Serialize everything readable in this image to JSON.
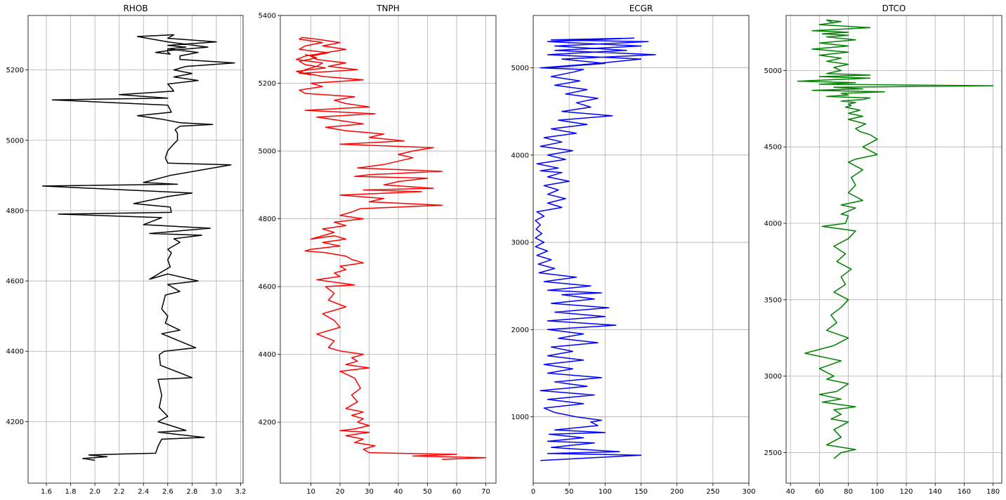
{
  "chart_data": [
    {
      "type": "line",
      "title": "RHOB",
      "color": "#000000",
      "xlim": [
        1.45,
        3.22
      ],
      "ylim": [
        4025,
        5355
      ],
      "xticks": [
        1.6,
        1.8,
        2.0,
        2.2,
        2.4,
        2.6,
        2.8,
        3.0,
        3.2
      ],
      "xtick_labels": [
        "1.6",
        "1.8",
        "2.0",
        "2.2",
        "2.4",
        "2.6",
        "2.8",
        "3.0",
        "3.2"
      ],
      "yticks": [
        4200,
        4400,
        4600,
        4800,
        5000,
        5200
      ],
      "ytick_labels": [
        "4200",
        "4400",
        "4600",
        "4800",
        "5000",
        "5200"
      ],
      "grid": true,
      "series": [
        {
          "x": [
            2.0,
            1.9,
            2.1,
            1.95,
            2.25,
            2.5,
            2.52,
            2.55,
            2.9,
            2.52,
            2.75,
            2.52,
            2.6,
            2.53,
            2.55,
            2.52,
            2.8,
            2.54,
            2.53,
            2.57,
            2.83,
            2.55,
            2.7,
            2.58,
            2.6,
            2.55,
            2.58,
            2.7,
            2.6,
            2.85,
            2.6,
            2.45,
            2.62,
            2.6,
            2.63,
            2.6,
            2.65,
            2.7,
            2.65,
            2.88,
            2.45,
            2.95,
            2.4,
            2.55,
            1.7,
            2.63,
            2.62,
            2.32,
            2.6,
            2.8,
            1.57,
            2.68,
            2.4,
            2.62,
            3.12,
            2.6,
            2.58,
            2.6,
            2.65,
            2.68,
            2.68,
            2.66,
            2.7,
            2.97,
            2.7,
            2.55,
            2.35,
            2.63,
            2.6,
            1.65,
            2.6,
            2.2,
            2.65,
            2.6,
            2.85,
            2.65,
            2.8,
            2.65,
            2.75,
            3.15,
            2.7,
            2.7,
            2.85,
            2.6,
            2.75,
            2.6,
            3.0,
            2.6,
            2.65,
            2.35,
            2.6,
            2.93,
            2.6,
            2.5,
            2.62,
            2.6,
            2.6
          ],
          "y": [
            4090,
            4095,
            4100,
            4105,
            4108,
            4110,
            4130,
            4150,
            4155,
            4170,
            4175,
            4200,
            4215,
            4240,
            4275,
            4320,
            4325,
            4360,
            4390,
            4400,
            4410,
            4450,
            4460,
            4480,
            4500,
            4520,
            4560,
            4570,
            4590,
            4600,
            4620,
            4605,
            4640,
            4660,
            4680,
            4690,
            4700,
            4710,
            4720,
            4730,
            4735,
            4750,
            4760,
            4780,
            4790,
            4795,
            4810,
            4820,
            4840,
            4850,
            4870,
            4875,
            4880,
            4900,
            4930,
            4935,
            4950,
            4970,
            4990,
            5000,
            5020,
            5030,
            5040,
            5045,
            5050,
            5060,
            5070,
            5080,
            5100,
            5115,
            5120,
            5130,
            5140,
            5160,
            5170,
            5180,
            5190,
            5200,
            5210,
            5220,
            5230,
            5240,
            5250,
            5260,
            5265,
            5270,
            5280,
            5290,
            5300,
            5295,
            5280,
            5265,
            5255,
            5250,
            5245,
            5250,
            5260
          ]
        }
      ]
    },
    {
      "type": "line",
      "title": "TNPH",
      "color": "#ff0000",
      "xlim": [
        -0.5,
        73.5
      ],
      "ylim": [
        4020,
        5400
      ],
      "xticks": [
        10,
        20,
        30,
        40,
        50,
        60,
        70
      ],
      "xtick_labels": [
        "10",
        "20",
        "30",
        "40",
        "50",
        "60",
        "70"
      ],
      "yticks": [
        4200,
        4400,
        4600,
        4800,
        5000,
        5200,
        5400
      ],
      "ytick_labels": [
        "4200",
        "4400",
        "4600",
        "4800",
        "5000",
        "5200",
        "5400"
      ],
      "grid": true,
      "series": [
        {
          "x": [
            55,
            70,
            45,
            60,
            30,
            28,
            32,
            25,
            28,
            22,
            30,
            20,
            25,
            30,
            26,
            28,
            24,
            28,
            22,
            26,
            24,
            27,
            25,
            20,
            30,
            22,
            26,
            24,
            28,
            20,
            16,
            18,
            12,
            20,
            18,
            14,
            22,
            16,
            18,
            15,
            25,
            12,
            20,
            18,
            22,
            20,
            28,
            24,
            22,
            15,
            8,
            10,
            20,
            14,
            22,
            18,
            10,
            18,
            14,
            22,
            18,
            28,
            20,
            24,
            27,
            55,
            30,
            35,
            20,
            48,
            28,
            52,
            35,
            40,
            50,
            25,
            30,
            55,
            26,
            35,
            45,
            40,
            45,
            52,
            20,
            42,
            30,
            35,
            22,
            15,
            28,
            20,
            12,
            32,
            8,
            30,
            22,
            18,
            25,
            8,
            6,
            14,
            10,
            28,
            14,
            8,
            26,
            16,
            22,
            12,
            10,
            16,
            6,
            8,
            14,
            6,
            7,
            12,
            20,
            14,
            22,
            15,
            8,
            5,
            14,
            12,
            8,
            6,
            10,
            5,
            15,
            8,
            6,
            12,
            8
          ],
          "y": [
            4090,
            4095,
            4100,
            4105,
            4110,
            4120,
            4130,
            4140,
            4150,
            4160,
            4170,
            4175,
            4180,
            4190,
            4200,
            4210,
            4220,
            4230,
            4240,
            4260,
            4280,
            4300,
            4330,
            4350,
            4360,
            4370,
            4380,
            4390,
            4400,
            4410,
            4420,
            4440,
            4460,
            4480,
            4500,
            4520,
            4540,
            4560,
            4580,
            4600,
            4605,
            4620,
            4630,
            4640,
            4650,
            4660,
            4670,
            4680,
            4690,
            4700,
            4705,
            4710,
            4720,
            4730,
            4740,
            4750,
            4740,
            4760,
            4770,
            4780,
            4790,
            4800,
            4810,
            4820,
            4830,
            4840,
            4850,
            4860,
            4870,
            4880,
            4885,
            4890,
            4900,
            4910,
            4920,
            4925,
            4930,
            4940,
            4950,
            4960,
            4980,
            4990,
            5000,
            5010,
            5020,
            5030,
            5040,
            5050,
            5060,
            5070,
            5080,
            5090,
            5100,
            5110,
            5120,
            5130,
            5140,
            5150,
            5160,
            5170,
            5180,
            5190,
            5200,
            5210,
            5220,
            5230,
            5240,
            5250,
            5260,
            5270,
            5280,
            5290,
            5300,
            5310,
            5320,
            5330,
            5335,
            5330,
            5320,
            5310,
            5300,
            5290,
            5280,
            5270,
            5260,
            5250,
            5240,
            5230,
            5225,
            5235,
            5245,
            5255,
            5265,
            5275,
            5285
          ]
        }
      ]
    },
    {
      "type": "line",
      "title": "ECGR",
      "color": "#0000ff",
      "xlim": [
        0,
        300
      ],
      "ylim": [
        240,
        5600
      ],
      "xticks": [
        0,
        50,
        100,
        150,
        200,
        250,
        300
      ],
      "xtick_labels": [
        "0",
        "50",
        "100",
        "150",
        "200",
        "250",
        "300"
      ],
      "yticks": [
        1000,
        2000,
        3000,
        4000,
        5000
      ],
      "ytick_labels": [
        "1000",
        "2000",
        "3000",
        "4000",
        "5000"
      ],
      "grid": true,
      "series": [
        {
          "x": [
            10,
            150,
            20,
            120,
            25,
            85,
            20,
            70,
            22,
            100,
            30,
            90,
            80,
            95,
            60,
            30,
            15,
            70,
            20,
            85,
            10,
            75,
            30,
            95,
            20,
            55,
            15,
            70,
            20,
            55,
            25,
            90,
            35,
            70,
            20,
            115,
            20,
            100,
            30,
            105,
            25,
            85,
            40,
            95,
            20,
            80,
            15,
            60,
            8,
            30,
            7,
            25,
            5,
            20,
            3,
            15,
            3,
            12,
            4,
            10,
            3,
            15,
            5,
            40,
            20,
            45,
            20,
            35,
            15,
            50,
            20,
            40,
            10,
            35,
            5,
            45,
            20,
            55,
            10,
            40,
            15,
            60,
            25,
            75,
            35,
            110,
            40,
            80,
            60,
            90,
            45,
            75,
            30,
            65,
            25,
            55,
            70,
            10,
            90,
            150,
            20,
            130,
            30,
            160,
            25,
            140,
            20,
            150,
            30,
            170,
            40,
            100,
            20
          ],
          "y": [
            500,
            560,
            580,
            600,
            650,
            700,
            720,
            760,
            800,
            820,
            850,
            900,
            940,
            960,
            1000,
            1050,
            1100,
            1150,
            1200,
            1250,
            1300,
            1350,
            1400,
            1450,
            1500,
            1550,
            1600,
            1650,
            1700,
            1750,
            1800,
            1850,
            1900,
            1950,
            2000,
            2050,
            2100,
            2150,
            2200,
            2250,
            2300,
            2350,
            2400,
            2420,
            2450,
            2500,
            2550,
            2600,
            2650,
            2700,
            2750,
            2800,
            2850,
            2900,
            2950,
            3000,
            3050,
            3100,
            3150,
            3200,
            3250,
            3300,
            3350,
            3400,
            3450,
            3500,
            3550,
            3600,
            3650,
            3700,
            3750,
            3800,
            3820,
            3850,
            3900,
            3950,
            4000,
            4050,
            4100,
            4150,
            4200,
            4250,
            4300,
            4350,
            4400,
            4450,
            4500,
            4550,
            4600,
            4650,
            4700,
            4750,
            4800,
            4850,
            4900,
            4950,
            4980,
            5000,
            5050,
            5100,
            5150,
            5200,
            5250,
            5300,
            5320,
            5340,
            5300,
            5250,
            5200,
            5150,
            5100,
            5050,
            5000
          ]
        }
      ]
    },
    {
      "type": "line",
      "title": "DTCO",
      "color": "#008000",
      "xlim": [
        37,
        186
      ],
      "ylim": [
        2300,
        5360
      ],
      "xticks": [
        40,
        60,
        80,
        100,
        120,
        140,
        160,
        180
      ],
      "xtick_labels": [
        "40",
        "60",
        "80",
        "100",
        "120",
        "140",
        "160",
        "180"
      ],
      "yticks": [
        2500,
        3000,
        3500,
        4000,
        4500,
        5000
      ],
      "ytick_labels": [
        "2500",
        "3000",
        "3500",
        "4000",
        "4500",
        "5000"
      ],
      "grid": true,
      "series": [
        {
          "x": [
            70,
            75,
            85,
            65,
            75,
            70,
            80,
            68,
            75,
            70,
            85,
            62,
            75,
            60,
            72,
            80,
            65,
            70,
            60,
            75,
            50,
            70,
            80,
            65,
            72,
            68,
            75,
            80,
            70,
            78,
            75,
            82,
            72,
            78,
            70,
            80,
            85,
            62,
            78,
            80,
            75,
            85,
            75,
            90,
            80,
            85,
            82,
            90,
            80,
            85,
            100,
            90,
            100,
            95,
            88,
            85,
            92,
            80,
            90,
            85,
            80,
            88,
            78,
            82,
            80,
            85,
            75,
            90,
            95,
            65,
            80,
            75,
            105,
            55,
            90,
            70,
            180,
            60,
            85,
            45,
            95,
            60,
            95,
            65,
            75,
            70,
            80,
            65,
            75,
            60,
            80,
            55,
            80,
            60,
            85,
            65,
            80,
            62,
            80,
            55,
            95,
            60,
            75,
            65,
            70
          ],
          "y": [
            2460,
            2500,
            2520,
            2550,
            2600,
            2650,
            2700,
            2720,
            2750,
            2780,
            2800,
            2830,
            2850,
            2880,
            2900,
            2950,
            2980,
            3000,
            3050,
            3100,
            3150,
            3200,
            3250,
            3300,
            3350,
            3400,
            3450,
            3500,
            3550,
            3600,
            3650,
            3700,
            3750,
            3800,
            3850,
            3900,
            3950,
            3980,
            4000,
            4050,
            4060,
            4100,
            4120,
            4150,
            4200,
            4250,
            4300,
            4350,
            4400,
            4420,
            4450,
            4500,
            4550,
            4580,
            4600,
            4620,
            4650,
            4680,
            4700,
            4710,
            4720,
            4740,
            4760,
            4770,
            4780,
            4790,
            4800,
            4810,
            4820,
            4830,
            4840,
            4850,
            4860,
            4870,
            4880,
            4890,
            4900,
            4910,
            4920,
            4930,
            4950,
            4960,
            4970,
            4980,
            5000,
            5020,
            5040,
            5060,
            5080,
            5100,
            5120,
            5140,
            5160,
            5180,
            5200,
            5220,
            5230,
            5240,
            5250,
            5260,
            5280,
            5300,
            5320,
            5330,
            5310
          ]
        }
      ]
    }
  ]
}
